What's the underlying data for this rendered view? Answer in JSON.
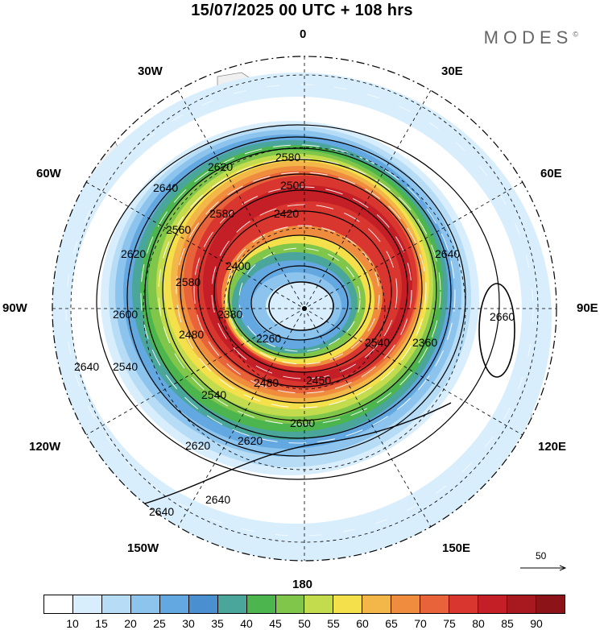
{
  "title": "15/07/2025  00 UTC  + 108 hrs",
  "brand": "MODES",
  "brand_mark": "©",
  "longitude_labels": {
    "n": "0",
    "s": "180",
    "e": "90E",
    "w": "90W",
    "ne30": "30E",
    "ne60": "60E",
    "se120": "120E",
    "se150": "150E",
    "nw30": "30W",
    "nw60": "60W",
    "sw120": "120W",
    "sw150": "150W"
  },
  "contour_labels": [
    "2620",
    "2580",
    "2500",
    "2640",
    "2620",
    "2560",
    "2420",
    "2400",
    "2600",
    "2540",
    "2580",
    "2640",
    "2580",
    "2480",
    "2380",
    "2260",
    "2360",
    "2640",
    "2620",
    "2620",
    "2540",
    "2480",
    "2450",
    "2600",
    "2640",
    "2640",
    "2660",
    "2540"
  ],
  "vector_reference": {
    "value": "50"
  },
  "colorbar": {
    "ticks": [
      "10",
      "15",
      "20",
      "25",
      "30",
      "35",
      "40",
      "45",
      "50",
      "55",
      "60",
      "65",
      "70",
      "75",
      "80",
      "85",
      "90"
    ],
    "colors": [
      "#ffffff",
      "#d8eefc",
      "#b6dcf6",
      "#8cc4ee",
      "#63a8e0",
      "#4a8fcf",
      "#4aa59b",
      "#4cb54e",
      "#7fc64b",
      "#c3dc4d",
      "#f3e04a",
      "#f3b648",
      "#f08c3e",
      "#e8623a",
      "#d8362e",
      "#c41e27",
      "#a8181f",
      "#8c1418"
    ]
  },
  "colors": {
    "land": "#f0f0f0",
    "land_edge": "#8a8a8a",
    "contour": "#000000",
    "wind_arrow": "#ffffff"
  }
}
